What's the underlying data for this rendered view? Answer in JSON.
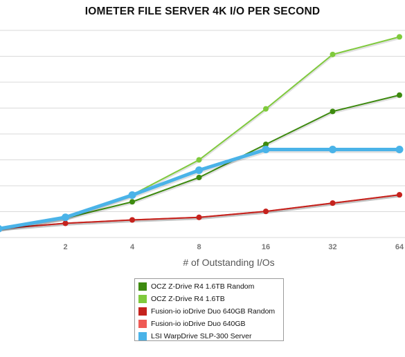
{
  "chart_data": {
    "type": "line",
    "title": "IOMETER FILE SERVER 4K I/O PER SECOND",
    "xlabel": "# of Outstanding I/Os",
    "ylabel": "",
    "x_scale": "log2",
    "categories": [
      "1",
      "2",
      "4",
      "8",
      "16",
      "32",
      "64"
    ],
    "x_tick_labels": [
      "2",
      "4",
      "8",
      "16",
      "32",
      "64"
    ],
    "x_range": [
      1,
      64
    ],
    "y_range": [
      0,
      8
    ],
    "y_axis_labels_shown": false,
    "grid": true,
    "legend_position": "bottom-center",
    "series": [
      {
        "name": "OCZ Z-Drive R4 1.6TB Random",
        "color": "#3d8a0f",
        "values": [
          0.34,
          0.75,
          1.38,
          2.32,
          3.6,
          4.87,
          5.5
        ]
      },
      {
        "name": "OCZ Z-Drive R4 1.6TB",
        "color": "#7fca3c",
        "values": [
          0.34,
          0.75,
          1.65,
          3.0,
          4.97,
          7.07,
          7.75
        ]
      },
      {
        "name": "Fusion-io ioDrive Duo 640GB Random",
        "color": "#c5221d",
        "values": [
          0.34,
          0.55,
          0.68,
          0.78,
          1.01,
          1.33,
          1.65
        ]
      },
      {
        "name": "Fusion-io ioDrive Duo 640GB",
        "color": "#ef5a55",
        "values": [
          0.34,
          0.55,
          0.68,
          0.78,
          1.01,
          1.33,
          1.65
        ]
      },
      {
        "name": "LSI WarpDrive SLP-300 Server",
        "color": "#4ab3e8",
        "values": [
          0.34,
          0.78,
          1.64,
          2.6,
          3.4,
          3.4,
          3.4
        ]
      }
    ]
  }
}
